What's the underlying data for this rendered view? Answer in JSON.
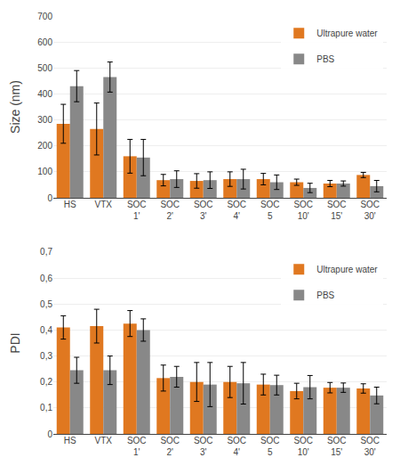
{
  "chart_data": [
    {
      "type": "bar",
      "categories": [
        "HS",
        "VTX",
        "SOC\n1'",
        "SOC\n2'",
        "SOC\n3'",
        "SOC\n4'",
        "SOC\n5",
        "SOC\n10'",
        "SOC\n15'",
        "SOC\n30'"
      ],
      "series": [
        {
          "name": "Ultrapure water",
          "color": "#E07820",
          "values": [
            285,
            265,
            160,
            68,
            65,
            72,
            72,
            60,
            55,
            88
          ],
          "errors": [
            75,
            100,
            65,
            22,
            28,
            28,
            22,
            12,
            12,
            10
          ]
        },
        {
          "name": "PBS",
          "color": "#888888",
          "values": [
            430,
            465,
            155,
            72,
            68,
            72,
            60,
            38,
            55,
            45
          ],
          "errors": [
            60,
            58,
            70,
            32,
            32,
            38,
            28,
            18,
            10,
            22
          ]
        }
      ],
      "ylabel": "Size (nm)",
      "ylim": [
        0,
        700
      ],
      "yticks": [
        0,
        100,
        200,
        300,
        400,
        500,
        600,
        700
      ],
      "grid": true,
      "legend": "upper right"
    },
    {
      "type": "bar",
      "categories": [
        "HS",
        "VTX",
        "SOC\n1'",
        "SOC\n2'",
        "SOC\n3'",
        "SOC\n4'",
        "SOC\n5",
        "SOC\n10'",
        "SOC\n15'",
        "SOC\n30'"
      ],
      "series": [
        {
          "name": "Ultrapure water",
          "color": "#E07820",
          "values": [
            0.41,
            0.415,
            0.425,
            0.215,
            0.2,
            0.2,
            0.19,
            0.165,
            0.178,
            0.175
          ],
          "errors": [
            0.045,
            0.065,
            0.05,
            0.05,
            0.075,
            0.06,
            0.04,
            0.03,
            0.02,
            0.018
          ]
        },
        {
          "name": "PBS",
          "color": "#888888",
          "values": [
            0.245,
            0.245,
            0.4,
            0.22,
            0.19,
            0.195,
            0.188,
            0.18,
            0.178,
            0.148
          ],
          "errors": [
            0.05,
            0.055,
            0.043,
            0.04,
            0.085,
            0.08,
            0.038,
            0.045,
            0.018,
            0.032
          ]
        }
      ],
      "ylabel": "PDI",
      "ylim": [
        0,
        0.7
      ],
      "yticks": [
        0,
        {
          "value": 0.1,
          "label": "0,1"
        },
        {
          "value": 0.2,
          "label": "0,2"
        },
        {
          "value": 0.3,
          "label": "0,3"
        },
        {
          "value": 0.4,
          "label": "0,4"
        },
        {
          "value": 0.5,
          "label": "0,5"
        },
        {
          "value": 0.6,
          "label": "0,6"
        },
        {
          "value": 0.7,
          "label": "0,7"
        }
      ],
      "grid": true,
      "legend": "upper right"
    }
  ]
}
